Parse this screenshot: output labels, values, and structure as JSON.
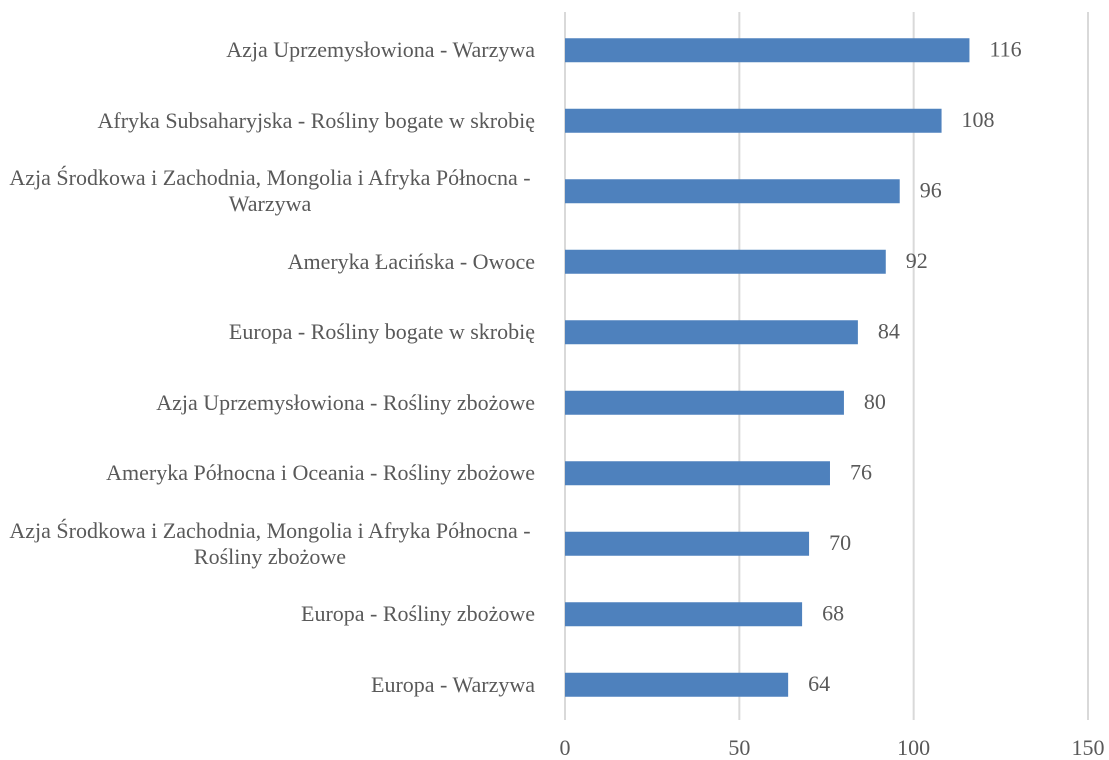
{
  "chart_data": {
    "type": "barh",
    "categories": [
      "Azja Uprzemysłowiona - Warzywa",
      "Afryka Subsaharyjska - Rośliny bogate w skrobię",
      "Azja Środkowa i Zachodnia, Mongolia  i Afryka Północna - Warzywa",
      "Ameryka Łacińska - Owoce",
      "Europa - Rośliny bogate w skrobię",
      "Azja Uprzemysłowiona - Rośliny zbożowe",
      "Ameryka Północna i Oceania - Rośliny zbożowe",
      "Azja Środkowa i Zachodnia, Mongolia  i Afryka Północna - Rośliny zbożowe",
      "Europa - Rośliny zbożowe",
      "Europa - Warzywa"
    ],
    "values": [
      116,
      108,
      96,
      92,
      84,
      80,
      76,
      70,
      68,
      64
    ],
    "color": "#4e81bd",
    "xlim": [
      0,
      150
    ],
    "xticks": [
      0,
      50,
      100,
      150
    ],
    "grid": true
  }
}
